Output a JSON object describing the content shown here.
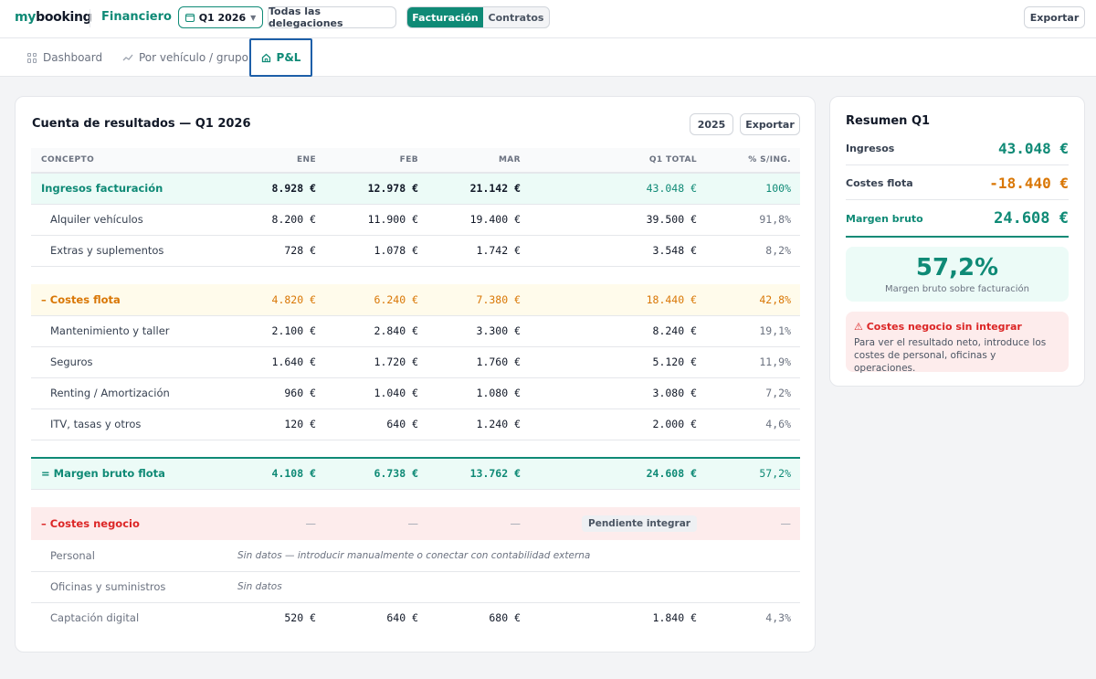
{
  "header": {
    "logo_my": "my",
    "logo_booking": "booking",
    "section": "Financiero",
    "quarter": "Q1 2026",
    "delegation": "Todas las delegaciones",
    "toggle_on": "Facturación",
    "toggle_off": "Contratos",
    "export": "Exportar"
  },
  "tabs": {
    "dashboard": "Dashboard",
    "vehicle": "Por vehículo / grupo",
    "pl": "P&L"
  },
  "main": {
    "title": "Cuenta de resultados — Q1 2026",
    "year_btn": "2025",
    "export_btn": "Exportar",
    "columns": [
      "CONCEPTO",
      "ENE",
      "FEB",
      "MAR",
      "Q1 TOTAL",
      "% S/ING."
    ],
    "rows": {
      "ing": [
        "Ingresos facturación",
        "8.928 €",
        "12.978 €",
        "21.142 €",
        "43.048 €",
        "100%"
      ],
      "alq": [
        "Alquiler vehículos",
        "8.200 €",
        "11.900 €",
        "19.400 €",
        "39.500 €",
        "91,8%"
      ],
      "ext": [
        "Extras y suplementos",
        "728 €",
        "1.078 €",
        "1.742 €",
        "3.548 €",
        "8,2%"
      ],
      "cost": [
        "– Costes flota",
        "4.820 €",
        "6.240 €",
        "7.380 €",
        "18.440 €",
        "42,8%"
      ],
      "mant": [
        "Mantenimiento y taller",
        "2.100 €",
        "2.840 €",
        "3.300 €",
        "8.240 €",
        "19,1%"
      ],
      "seg": [
        "Seguros",
        "1.640 €",
        "1.720 €",
        "1.760 €",
        "5.120 €",
        "11,9%"
      ],
      "rent": [
        "Renting / Amortización",
        "960 €",
        "1.040 €",
        "1.080 €",
        "3.080 €",
        "7,2%"
      ],
      "itv": [
        "ITV, tasas y otros",
        "120 €",
        "640 €",
        "1.240 €",
        "2.000 €",
        "4,6%"
      ],
      "marg": [
        "= Margen bruto flota",
        "4.108 €",
        "6.738 €",
        "13.762 €",
        "24.608 €",
        "57,2%"
      ],
      "neg": [
        "– Costes negocio",
        "—",
        "—",
        "—",
        "Pendiente integrar",
        "—"
      ],
      "pers": [
        "Personal",
        "Sin datos — introducir manualmente o conectar con contabilidad externa"
      ],
      "ofic": [
        "Oficinas y suministros",
        "Sin datos"
      ],
      "capt": [
        "Captación digital",
        "520 €",
        "640 €",
        "680 €",
        "1.840 €",
        "4,3%"
      ]
    }
  },
  "summary": {
    "title": "Resumen Q1",
    "ingresos_label": "Ingresos",
    "ingresos_value": "43.048 €",
    "costes_label": "Costes flota",
    "costes_value": "-18.440 €",
    "margen_label": "Margen bruto",
    "margen_value": "24.608 €",
    "margin_pct": "57,2%",
    "margin_caption": "Margen bruto sobre facturación",
    "warn_title": "⚠ Costes negocio sin integrar",
    "warn_text": "Para ver el resultado neto, introduce los costes de personal, oficinas y operaciones."
  },
  "colors": {
    "accent": "#0f8a76",
    "cost": "#d97706",
    "negative": "#dc2626",
    "active_tab_border": "#1d5fa8"
  }
}
